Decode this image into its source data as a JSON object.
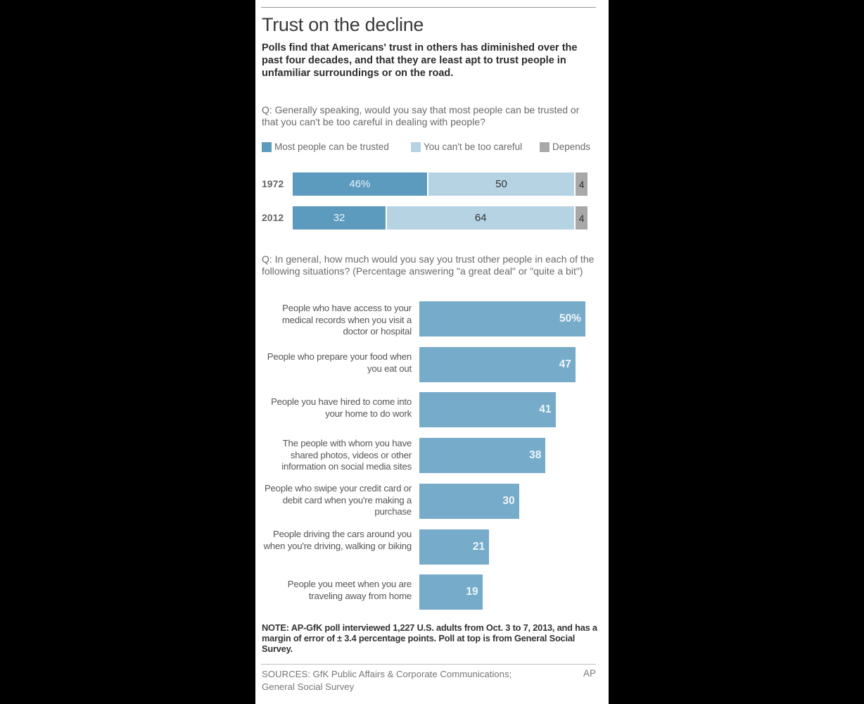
{
  "title": "Trust on the decline",
  "subtitle": "Polls find that Americans' trust in others has diminished over the past four decades, and that they are least apt to trust people in unfamiliar surroundings or on the road.",
  "question1": "Q: Generally speaking, would you say that most people can be trusted or that you can't be too careful in dealing with people?",
  "question2": "Q: In general, how much would you say you trust other people in each of the following situations? (Percentage answering \"a great deal\" or \"quite a bit\")",
  "note": "NOTE: AP-GfK poll interviewed 1,227 U.S. adults from Oct. 3 to 7, 2013, and has a margin of error of ± 3.4 percentage points. Poll at top is from General Social Survey.",
  "sources": "SOURCES: GfK Public Affairs & Corporate Communications; General Social Survey",
  "credit": "AP",
  "colors": {
    "trusted": "#5c9bbd",
    "careful": "#b6d3e3",
    "depends": "#a8a8a8",
    "situation_bar": "#76abca"
  },
  "chart_data": [
    {
      "type": "bar",
      "orientation": "horizontal-stacked",
      "categories": [
        "1972",
        "2012"
      ],
      "series": [
        {
          "name": "Most people can be trusted",
          "values": [
            46,
            32
          ],
          "labels": [
            "46%",
            "32"
          ]
        },
        {
          "name": "You can't be too careful",
          "values": [
            50,
            64
          ],
          "labels": [
            "50",
            "64"
          ]
        },
        {
          "name": "Depends",
          "values": [
            4,
            4
          ],
          "labels": [
            "4",
            "4"
          ]
        }
      ],
      "xlim": [
        0,
        100
      ],
      "legend": "top"
    },
    {
      "type": "bar",
      "orientation": "horizontal",
      "categories": [
        "People who have access to your medical records when you visit a doctor or hospital",
        "People who prepare your food when you eat out",
        "People you have hired to come into your home to do work",
        "The people with whom you have shared photos, videos or other information on social media sites",
        "People who swipe your credit card or debit card when you're making a purchase",
        "People driving the cars around you when you're driving, walking or biking",
        "People you meet when you are traveling away from home"
      ],
      "values": [
        50,
        47,
        41,
        38,
        30,
        21,
        19
      ],
      "labels": [
        "50%",
        "47",
        "41",
        "38",
        "30",
        "21",
        "19"
      ],
      "xlim": [
        0,
        50
      ]
    }
  ]
}
